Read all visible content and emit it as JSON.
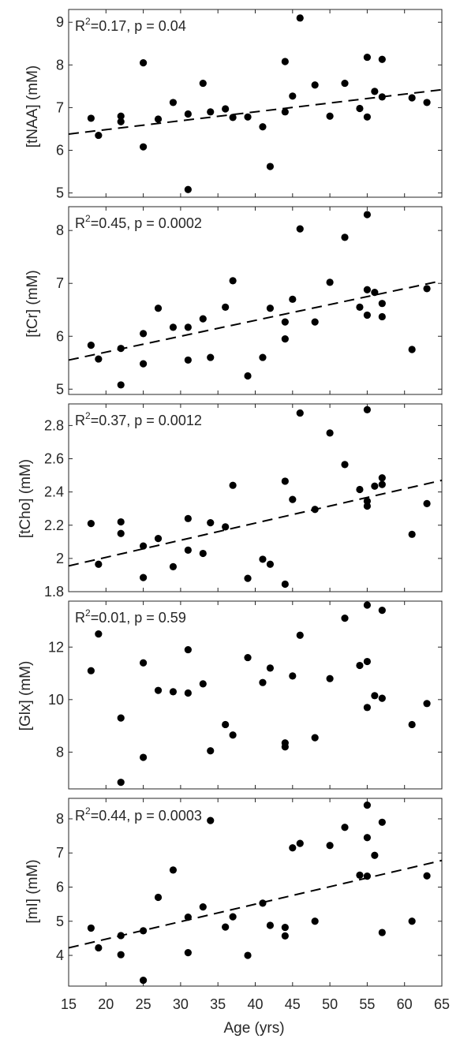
{
  "chart_data": [
    {
      "type": "scatter",
      "ylabel": "[tNAA] (mM)",
      "stats": {
        "r2": "0.17",
        "p": "p = 0.04"
      },
      "ylim": [
        4.9,
        9.3
      ],
      "yticks": [
        "5",
        "6",
        "7",
        "8",
        "9"
      ],
      "fit": {
        "x": [
          15,
          65
        ],
        "y": [
          6.38,
          7.42
        ]
      },
      "points": [
        [
          18,
          6.75
        ],
        [
          19,
          6.35
        ],
        [
          22,
          6.8
        ],
        [
          22,
          6.67
        ],
        [
          25,
          8.05
        ],
        [
          25,
          6.08
        ],
        [
          27,
          6.73
        ],
        [
          29,
          7.12
        ],
        [
          31,
          6.85
        ],
        [
          31,
          5.08
        ],
        [
          33,
          7.57
        ],
        [
          34,
          6.9
        ],
        [
          36,
          6.97
        ],
        [
          37,
          6.77
        ],
        [
          39,
          6.78
        ],
        [
          41,
          6.55
        ],
        [
          42,
          5.62
        ],
        [
          44,
          8.08
        ],
        [
          44,
          6.9
        ],
        [
          45,
          7.27
        ],
        [
          46,
          9.1
        ],
        [
          48,
          7.53
        ],
        [
          50,
          6.8
        ],
        [
          52,
          7.57
        ],
        [
          54,
          6.98
        ],
        [
          55,
          8.18
        ],
        [
          55,
          6.78
        ],
        [
          56,
          7.38
        ],
        [
          57,
          8.13
        ],
        [
          57,
          7.25
        ],
        [
          61,
          7.23
        ],
        [
          63,
          7.12
        ]
      ]
    },
    {
      "type": "scatter",
      "ylabel": "[tCr] (mM)",
      "stats": {
        "r2": "0.45",
        "p": "p = 0.0002"
      },
      "ylim": [
        4.9,
        8.45
      ],
      "yticks": [
        "5",
        "6",
        "7",
        "8"
      ],
      "fit": {
        "x": [
          15,
          65
        ],
        "y": [
          5.55,
          7.05
        ]
      },
      "points": [
        [
          18,
          5.83
        ],
        [
          19,
          5.57
        ],
        [
          22,
          5.77
        ],
        [
          22,
          5.08
        ],
        [
          25,
          6.05
        ],
        [
          25,
          5.48
        ],
        [
          27,
          6.53
        ],
        [
          29,
          6.17
        ],
        [
          31,
          6.17
        ],
        [
          31,
          5.55
        ],
        [
          33,
          6.33
        ],
        [
          34,
          5.6
        ],
        [
          36,
          6.55
        ],
        [
          37,
          7.05
        ],
        [
          39,
          5.25
        ],
        [
          41,
          5.6
        ],
        [
          42,
          6.53
        ],
        [
          44,
          6.27
        ],
        [
          44,
          5.95
        ],
        [
          45,
          6.7
        ],
        [
          46,
          8.03
        ],
        [
          48,
          6.27
        ],
        [
          50,
          7.02
        ],
        [
          52,
          7.87
        ],
        [
          54,
          6.55
        ],
        [
          55,
          8.3
        ],
        [
          55,
          6.88
        ],
        [
          55,
          6.4
        ],
        [
          56,
          6.83
        ],
        [
          57,
          6.62
        ],
        [
          57,
          6.37
        ],
        [
          61,
          5.75
        ],
        [
          63,
          6.9
        ]
      ]
    },
    {
      "type": "scatter",
      "ylabel": "[tCho] (mM)",
      "stats": {
        "r2": "0.37",
        "p": "p = 0.0012"
      },
      "ylim": [
        1.8,
        2.93
      ],
      "yticks": [
        "1.8",
        "2",
        "2.2",
        "2.4",
        "2.6",
        "2.8"
      ],
      "fit": {
        "x": [
          15,
          65
        ],
        "y": [
          1.955,
          2.47
        ]
      },
      "points": [
        [
          18,
          2.21
        ],
        [
          19,
          1.965
        ],
        [
          22,
          2.22
        ],
        [
          22,
          2.15
        ],
        [
          25,
          2.075
        ],
        [
          25,
          1.885
        ],
        [
          27,
          2.12
        ],
        [
          29,
          1.95
        ],
        [
          31,
          2.24
        ],
        [
          31,
          2.05
        ],
        [
          33,
          2.03
        ],
        [
          34,
          2.215
        ],
        [
          36,
          2.19
        ],
        [
          37,
          2.44
        ],
        [
          39,
          1.88
        ],
        [
          41,
          1.995
        ],
        [
          42,
          1.965
        ],
        [
          44,
          2.465
        ],
        [
          44,
          1.845
        ],
        [
          45,
          2.355
        ],
        [
          46,
          2.875
        ],
        [
          48,
          2.295
        ],
        [
          50,
          2.755
        ],
        [
          52,
          2.565
        ],
        [
          54,
          2.415
        ],
        [
          55,
          2.895
        ],
        [
          55,
          2.345
        ],
        [
          55,
          2.315
        ],
        [
          56,
          2.435
        ],
        [
          57,
          2.485
        ],
        [
          57,
          2.445
        ],
        [
          61,
          2.145
        ],
        [
          63,
          2.33
        ]
      ]
    },
    {
      "type": "scatter",
      "ylabel": "[Glx] (mM)",
      "stats": {
        "r2": "0.01",
        "p": "p = 0.59"
      },
      "ylim": [
        6.6,
        13.75
      ],
      "yticks": [
        "8",
        "10",
        "12"
      ],
      "fit": null,
      "points": [
        [
          18,
          11.1
        ],
        [
          19,
          12.5
        ],
        [
          22,
          9.3
        ],
        [
          22,
          6.85
        ],
        [
          25,
          11.4
        ],
        [
          25,
          7.8
        ],
        [
          27,
          10.35
        ],
        [
          29,
          10.3
        ],
        [
          31,
          11.9
        ],
        [
          31,
          10.25
        ],
        [
          33,
          10.6
        ],
        [
          34,
          8.05
        ],
        [
          36,
          9.05
        ],
        [
          37,
          8.65
        ],
        [
          39,
          11.6
        ],
        [
          41,
          10.65
        ],
        [
          42,
          11.2
        ],
        [
          44,
          8.35
        ],
        [
          44,
          8.2
        ],
        [
          45,
          10.9
        ],
        [
          46,
          12.45
        ],
        [
          48,
          8.55
        ],
        [
          50,
          10.8
        ],
        [
          52,
          13.1
        ],
        [
          54,
          11.3
        ],
        [
          55,
          13.6
        ],
        [
          55,
          11.45
        ],
        [
          55,
          9.7
        ],
        [
          56,
          10.15
        ],
        [
          57,
          13.4
        ],
        [
          57,
          10.05
        ],
        [
          61,
          9.05
        ],
        [
          63,
          9.85
        ]
      ]
    },
    {
      "type": "scatter",
      "ylabel": "[mI] (mM)",
      "stats": {
        "r2": "0.44",
        "p": "p = 0.0003"
      },
      "ylim": [
        3.1,
        8.6
      ],
      "yticks": [
        "4",
        "5",
        "6",
        "7",
        "8"
      ],
      "fit": {
        "x": [
          15,
          65
        ],
        "y": [
          4.22,
          6.78
        ]
      },
      "points": [
        [
          18,
          4.8
        ],
        [
          19,
          4.22
        ],
        [
          22,
          4.58
        ],
        [
          22,
          4.02
        ],
        [
          25,
          4.72
        ],
        [
          25,
          3.27
        ],
        [
          27,
          5.7
        ],
        [
          29,
          6.5
        ],
        [
          31,
          5.12
        ],
        [
          31,
          4.08
        ],
        [
          33,
          5.42
        ],
        [
          34,
          7.95
        ],
        [
          36,
          4.83
        ],
        [
          37,
          5.13
        ],
        [
          39,
          4.0
        ],
        [
          41,
          5.53
        ],
        [
          42,
          4.88
        ],
        [
          44,
          4.82
        ],
        [
          44,
          4.57
        ],
        [
          45,
          7.15
        ],
        [
          46,
          7.28
        ],
        [
          48,
          5.0
        ],
        [
          50,
          7.22
        ],
        [
          52,
          7.75
        ],
        [
          54,
          6.35
        ],
        [
          55,
          8.4
        ],
        [
          55,
          7.45
        ],
        [
          55,
          6.32
        ],
        [
          56,
          6.93
        ],
        [
          57,
          7.9
        ],
        [
          57,
          4.67
        ],
        [
          61,
          5.0
        ],
        [
          63,
          6.33
        ]
      ]
    }
  ],
  "shared_x": {
    "label": "Age (yrs)",
    "xlim": [
      15,
      65
    ],
    "ticks": [
      "15",
      "20",
      "25",
      "30",
      "35",
      "40",
      "45",
      "50",
      "55",
      "60",
      "65"
    ]
  }
}
